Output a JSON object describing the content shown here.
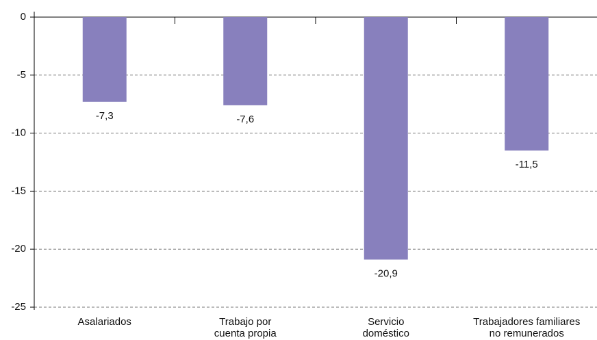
{
  "chart_data": {
    "type": "bar",
    "categories": [
      [
        "Asalariados"
      ],
      [
        "Trabajo por",
        "cuenta propia"
      ],
      [
        "Servicio",
        "doméstico"
      ],
      [
        "Trabajadores familiares",
        "no remunerados"
      ]
    ],
    "values": [
      -7.3,
      -7.6,
      -20.9,
      -11.5
    ],
    "value_labels": [
      "-7,3",
      "-7,6",
      "-20,9",
      "-11,5"
    ],
    "color": "#8880bd",
    "ylim": [
      -25,
      0
    ],
    "yticks": [
      0,
      -5,
      -10,
      -15,
      -20,
      -25
    ],
    "grid": true
  }
}
